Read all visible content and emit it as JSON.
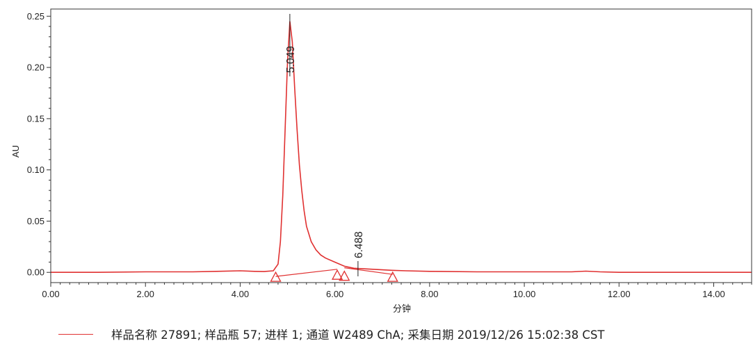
{
  "chart_data": {
    "type": "line",
    "xlabel": "分钟",
    "ylabel": "AU",
    "xlim": [
      0,
      14.8
    ],
    "ylim": [
      -0.01,
      0.257
    ],
    "x_ticks": [
      0,
      2,
      4,
      6,
      8,
      10,
      12,
      14
    ],
    "x_tick_labels": [
      "0.00",
      "2.00",
      "4.00",
      "6.00",
      "8.00",
      "10.00",
      "12.00",
      "14.00"
    ],
    "y_ticks": [
      0,
      0.05,
      0.1,
      0.15,
      0.2,
      0.25
    ],
    "y_tick_labels": [
      "0.00",
      "0.05",
      "0.10",
      "0.15",
      "0.20",
      "0.25"
    ],
    "grid": false,
    "legend_position": "bottom",
    "series": [
      {
        "name": "样品名称 27891; 样品瓶 57; 进样 1; 通道 W2489 ChA; 采集日期 2019/12/26 15:02:38 CST",
        "color": "#e03030",
        "x": [
          0.0,
          1.0,
          2.0,
          3.0,
          3.5,
          4.0,
          4.3,
          4.5,
          4.7,
          4.8,
          4.85,
          4.9,
          4.95,
          5.0,
          5.049,
          5.1,
          5.15,
          5.2,
          5.25,
          5.3,
          5.35,
          5.4,
          5.5,
          5.6,
          5.7,
          5.8,
          6.0,
          6.2,
          6.4,
          6.6,
          6.8,
          7.0,
          7.2,
          7.5,
          8.0,
          9.0,
          10.0,
          11.0,
          11.3,
          11.6,
          12.0,
          13.0,
          14.0,
          14.8
        ],
        "y": [
          0.0,
          0.0,
          0.0005,
          0.0005,
          0.001,
          0.0015,
          0.001,
          0.0008,
          0.0015,
          0.008,
          0.03,
          0.075,
          0.14,
          0.205,
          0.245,
          0.225,
          0.18,
          0.14,
          0.105,
          0.08,
          0.06,
          0.045,
          0.03,
          0.022,
          0.017,
          0.014,
          0.01,
          0.006,
          0.004,
          0.0035,
          0.003,
          0.0025,
          0.002,
          0.0015,
          0.001,
          0.0005,
          0.0005,
          0.0005,
          0.0012,
          0.0005,
          0.0,
          0.0,
          0.0,
          0.0
        ]
      }
    ],
    "baselines": [
      {
        "x": [
          4.75,
          6.05
        ],
        "y": [
          -0.004,
          0.003
        ]
      },
      {
        "x": [
          6.2,
          7.22
        ],
        "y": [
          0.0045,
          -0.002
        ]
      }
    ],
    "peak_markers": [
      {
        "x": 4.75,
        "y": -0.004
      },
      {
        "x": 6.05,
        "y": -0.002
      },
      {
        "x": 6.2,
        "y": -0.003
      },
      {
        "x": 7.22,
        "y": -0.004
      }
    ],
    "peak_labels": [
      {
        "x": 5.049,
        "label": "5.049"
      },
      {
        "x": 6.488,
        "label": "6.488"
      }
    ]
  }
}
